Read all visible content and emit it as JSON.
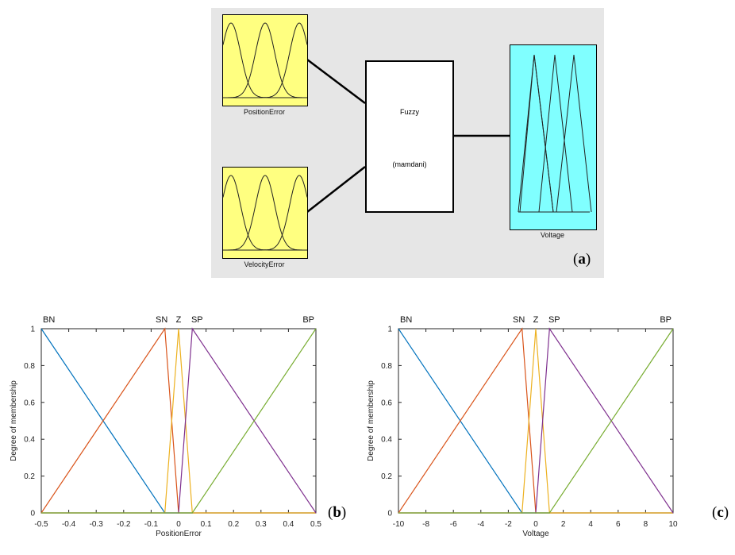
{
  "panel_a": {
    "label_letter": "a",
    "inputs": [
      "PositionError",
      "VelocityError"
    ],
    "output": "Voltage",
    "system_lines": [
      "Fuzzy",
      "(mamdani)"
    ],
    "input_box_color": "#ffff80",
    "output_box_color": "#80ffff"
  },
  "chart_data": [
    {
      "type": "line",
      "panel_label": "b",
      "xlabel": "PositionError",
      "ylabel": "Degree of membership",
      "xlim": [
        -0.5,
        0.5
      ],
      "ylim": [
        0,
        1
      ],
      "xticks": [
        -0.5,
        -0.4,
        -0.3,
        -0.2,
        -0.1,
        0,
        0.1,
        0.2,
        0.3,
        0.4,
        0.5
      ],
      "yticks": [
        0,
        0.2,
        0.4,
        0.6,
        0.8,
        1
      ],
      "series": [
        {
          "name": "BN",
          "color": "#0072bd",
          "x": [
            -0.5,
            -0.05,
            0.5
          ],
          "y": [
            1,
            0,
            0
          ]
        },
        {
          "name": "SN",
          "color": "#d95319",
          "x": [
            -0.5,
            -0.05,
            0,
            0.5
          ],
          "y": [
            0,
            1,
            0,
            0
          ]
        },
        {
          "name": "Z",
          "color": "#edb120",
          "x": [
            -0.5,
            -0.05,
            0,
            0.05,
            0.5
          ],
          "y": [
            0,
            0,
            1,
            0,
            0
          ]
        },
        {
          "name": "SP",
          "color": "#7e2f8e",
          "x": [
            -0.5,
            0,
            0.05,
            0.5
          ],
          "y": [
            0,
            0,
            1,
            0
          ]
        },
        {
          "name": "BP",
          "color": "#77ac30",
          "x": [
            -0.5,
            0.05,
            0.5
          ],
          "y": [
            0,
            0,
            1
          ]
        }
      ],
      "labels": [
        {
          "text": "BN",
          "x": -0.5
        },
        {
          "text": "SN",
          "x": -0.05
        },
        {
          "text": "Z",
          "x": 0
        },
        {
          "text": "SP",
          "x": 0.05
        },
        {
          "text": "BP",
          "x": 0.5
        }
      ]
    },
    {
      "type": "line",
      "panel_label": "c",
      "xlabel": "Voltage",
      "ylabel": "Degree of membership",
      "xlim": [
        -10,
        10
      ],
      "ylim": [
        0,
        1
      ],
      "xticks": [
        -10,
        -8,
        -6,
        -4,
        -2,
        0,
        2,
        4,
        6,
        8,
        10
      ],
      "yticks": [
        0,
        0.2,
        0.4,
        0.6,
        0.8,
        1
      ],
      "series": [
        {
          "name": "BN",
          "color": "#0072bd",
          "x": [
            -10,
            -1,
            10
          ],
          "y": [
            1,
            0,
            0
          ]
        },
        {
          "name": "SN",
          "color": "#d95319",
          "x": [
            -10,
            -1,
            0,
            10
          ],
          "y": [
            0,
            1,
            0,
            0
          ]
        },
        {
          "name": "Z",
          "color": "#edb120",
          "x": [
            -10,
            -1,
            0,
            1,
            10
          ],
          "y": [
            0,
            0,
            1,
            0,
            0
          ]
        },
        {
          "name": "SP",
          "color": "#7e2f8e",
          "x": [
            -10,
            0,
            1,
            10
          ],
          "y": [
            0,
            0,
            1,
            0
          ]
        },
        {
          "name": "BP",
          "color": "#77ac30",
          "x": [
            -10,
            1,
            10
          ],
          "y": [
            0,
            0,
            1
          ]
        }
      ],
      "labels": [
        {
          "text": "BN",
          "x": -10
        },
        {
          "text": "SN",
          "x": -1
        },
        {
          "text": "Z",
          "x": 0
        },
        {
          "text": "SP",
          "x": 1
        },
        {
          "text": "BP",
          "x": 10
        }
      ]
    }
  ]
}
